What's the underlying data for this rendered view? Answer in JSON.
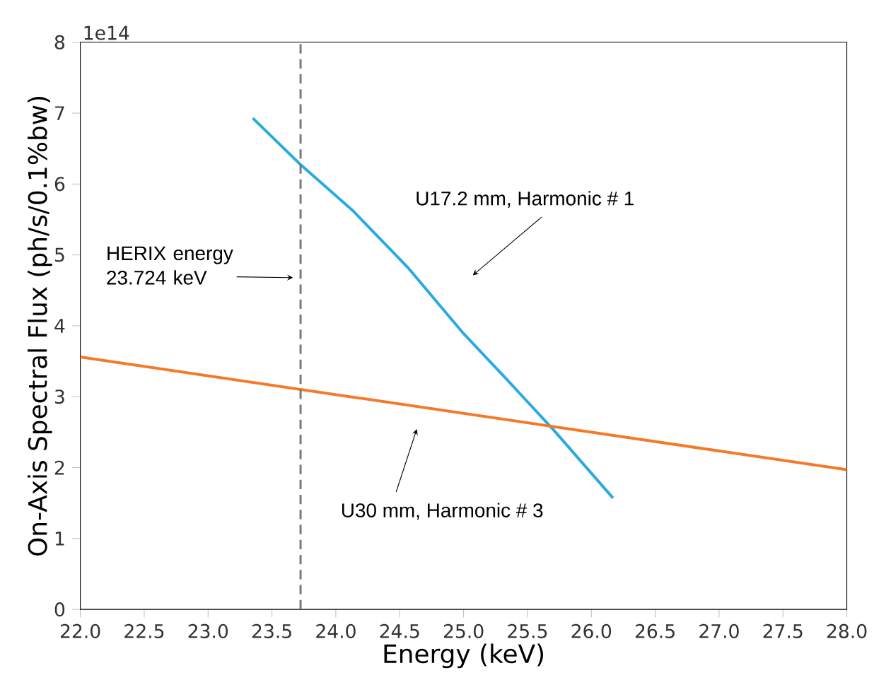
{
  "chart_data": {
    "type": "line",
    "xlabel": "Energy (keV)",
    "ylabel": "On-Axis Spectral Flux (ph/s/0.1%bw)",
    "xlim": [
      22,
      28
    ],
    "xticks": [
      {
        "value": 22,
        "label": "22.0"
      },
      22.5,
      {
        "value": 23,
        "label": "23.0"
      },
      23.5,
      {
        "value": 24,
        "label": "24.0"
      },
      24.5,
      {
        "value": 25,
        "label": "25.0"
      },
      25.5,
      {
        "value": 26,
        "label": "26.0"
      },
      26.5,
      {
        "value": 27,
        "label": "27.0"
      },
      27.5,
      {
        "value": 28,
        "label": "28.0"
      }
    ],
    "ylim": [
      0,
      8
    ],
    "yticks": [
      0,
      1,
      2,
      3,
      4,
      5,
      6,
      7,
      8
    ],
    "series": [
      {
        "color": "#29aae1",
        "x": [
          23.35,
          23.72,
          24.13,
          24.57,
          25.0,
          25.33,
          25.71,
          26.17
        ],
        "values": [
          6.93,
          6.28,
          5.63,
          4.81,
          3.89,
          3.26,
          2.52,
          1.57
        ]
      },
      {
        "color": "#f47a2a",
        "x": [
          22,
          28
        ],
        "values": [
          3.56,
          1.97
        ]
      }
    ],
    "ref_lines": [
      {
        "axis": "x",
        "value": 23.724,
        "label": "HERIX energy 23.724 keV",
        "color": "#6e7b7b",
        "line_style": "dashed"
      }
    ],
    "annotations": [
      "1e14",
      "U17.2 mm, Harmonic # 1",
      "U30 mm, Harmonic # 3"
    ],
    "grid": false,
    "marker": "none",
    "line_style": "solid"
  }
}
